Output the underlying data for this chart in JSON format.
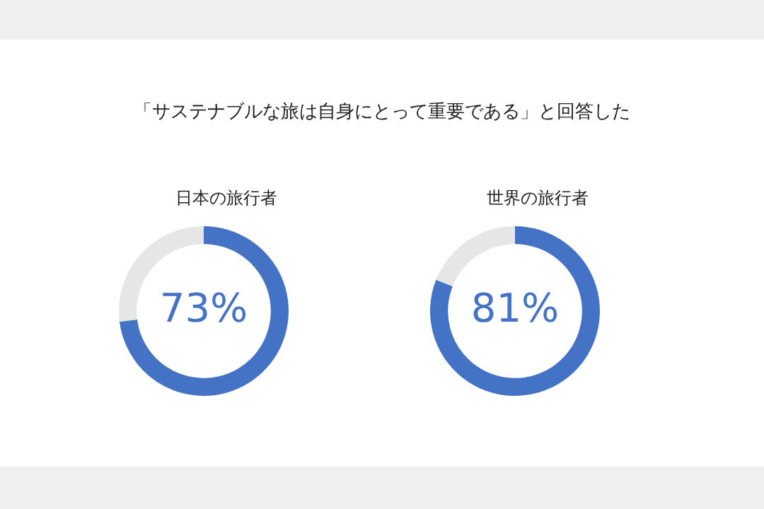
{
  "chart_data": [
    {
      "type": "donut",
      "title": "日本の旅行者",
      "annotations": [
        "「サステナブルな旅は自身にとって重要である」と回答した"
      ],
      "categories": [
        null,
        null
      ],
      "values": [
        73,
        27
      ],
      "colors": [
        "#4472c4",
        "#e6e6e6"
      ],
      "value_labels": [
        "73%",
        null
      ]
    },
    {
      "type": "donut",
      "title": "世界の旅行者",
      "categories": [
        null,
        null
      ],
      "values": [
        81,
        19
      ],
      "colors": [
        "#4472c4",
        "#e6e6e6"
      ],
      "value_labels": [
        "81%",
        null
      ]
    }
  ]
}
